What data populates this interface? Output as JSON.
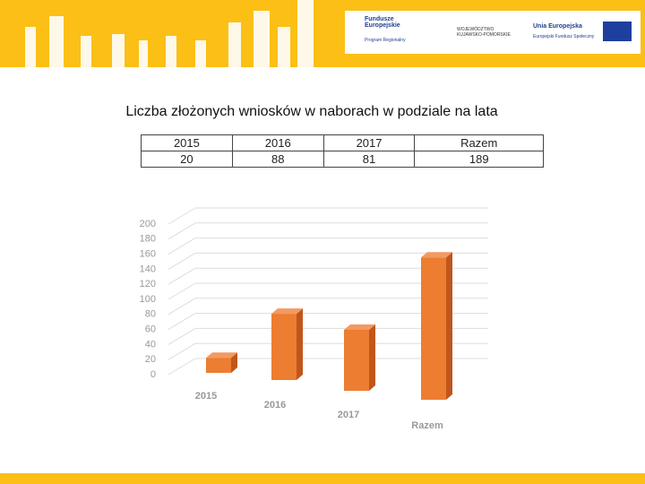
{
  "header": {
    "logos": [
      "Fundusze Europejskie",
      "Program Regionalny",
      "WOJEWÓDZTWO KUJAWSKO-POMORSKIE",
      "Unia Europejska",
      "Europejski Fundusz Społeczny"
    ]
  },
  "chart_data": {
    "type": "bar",
    "title": "Liczba złożonych wniosków w naborach w podziale na lata",
    "categories": [
      "2015",
      "2016",
      "2017",
      "Razem"
    ],
    "values": [
      20,
      88,
      81,
      189
    ],
    "color": "#ed7d31",
    "ylim": [
      0,
      200
    ],
    "yticks": [
      0,
      20,
      40,
      60,
      80,
      100,
      120,
      140,
      160,
      180,
      200
    ],
    "grid": true
  }
}
